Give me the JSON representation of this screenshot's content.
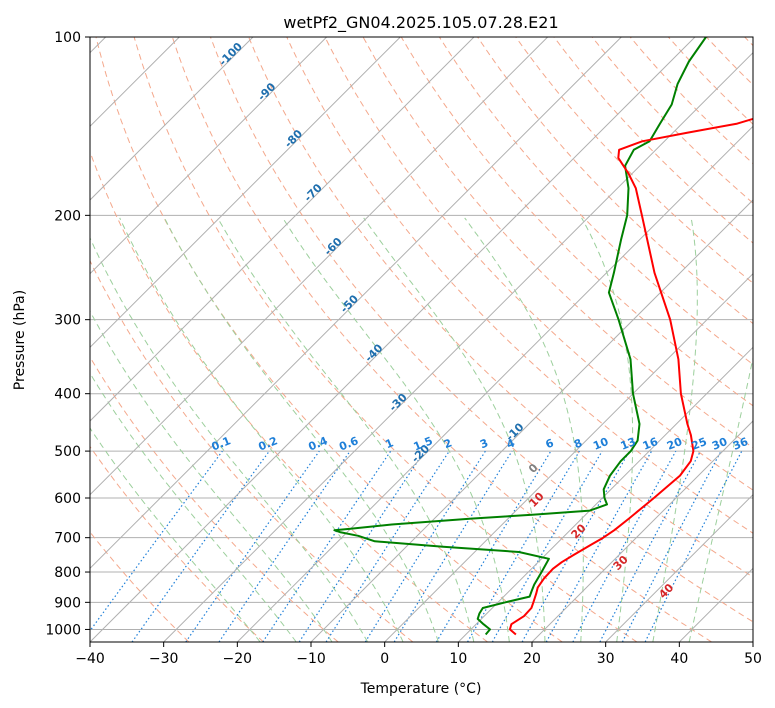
{
  "chart_data": {
    "type": "line",
    "title": "wetPf2_GN04.2025.105.07.28.E21",
    "xlabel": "Temperature (°C)",
    "ylabel": "Pressure (hPa)",
    "xlim": [
      -40,
      50
    ],
    "ylim": [
      1050,
      100
    ],
    "y_scale": "log",
    "grid": true,
    "x_ticks": [
      "−40",
      "−30",
      "−20",
      "−10",
      "0",
      "10",
      "20",
      "30",
      "40",
      "50"
    ],
    "x_tick_values": [
      -40,
      -30,
      -20,
      -10,
      0,
      10,
      20,
      30,
      40,
      50
    ],
    "y_ticks": [
      "100",
      "200",
      "300",
      "400",
      "500",
      "600",
      "700",
      "800",
      "900",
      "1000"
    ],
    "y_tick_values": [
      100,
      200,
      300,
      400,
      500,
      600,
      700,
      800,
      900,
      1000
    ],
    "skew_degrees": 45,
    "series": [
      {
        "role": "temperature",
        "color": "#ff0000",
        "points": [
          [
            1020,
            16.8
          ],
          [
            1000,
            15.3
          ],
          [
            980,
            14.8
          ],
          [
            950,
            15.4
          ],
          [
            920,
            15.3
          ],
          [
            900,
            14.8
          ],
          [
            870,
            14.0
          ],
          [
            850,
            13.4
          ],
          [
            820,
            13.0
          ],
          [
            790,
            12.9
          ],
          [
            770,
            13.2
          ],
          [
            750,
            13.8
          ],
          [
            720,
            14.8
          ],
          [
            700,
            15.5
          ],
          [
            680,
            16.0
          ],
          [
            650,
            16.4
          ],
          [
            600,
            17.0
          ],
          [
            550,
            17.5
          ],
          [
            520,
            17.0
          ],
          [
            500,
            16.0
          ],
          [
            470,
            13.5
          ],
          [
            450,
            11.5
          ],
          [
            400,
            6.5
          ],
          [
            350,
            1.5
          ],
          [
            300,
            -5.0
          ],
          [
            250,
            -13.5
          ],
          [
            200,
            -23.0
          ],
          [
            180,
            -27.5
          ],
          [
            170,
            -30.5
          ],
          [
            160,
            -34.0
          ],
          [
            155,
            -35.0
          ],
          [
            150,
            -33.0
          ],
          [
            145,
            -28.0
          ],
          [
            140,
            -22.5
          ],
          [
            130,
            -16.5
          ],
          [
            120,
            -12.0
          ],
          [
            110,
            -8.0
          ],
          [
            100,
            -4.5
          ]
        ]
      },
      {
        "role": "dewpoint",
        "color": "#008000",
        "points": [
          [
            1020,
            12.7
          ],
          [
            1000,
            12.6
          ],
          [
            980,
            11.0
          ],
          [
            960,
            9.5
          ],
          [
            940,
            9.0
          ],
          [
            920,
            8.7
          ],
          [
            900,
            11.0
          ],
          [
            880,
            13.5
          ],
          [
            860,
            13.0
          ],
          [
            840,
            12.5
          ],
          [
            800,
            11.8
          ],
          [
            760,
            11.0
          ],
          [
            740,
            6.0
          ],
          [
            725,
            -5.0
          ],
          [
            710,
            -15.0
          ],
          [
            695,
            -18.0
          ],
          [
            685,
            -21.0
          ],
          [
            680,
            -22.0
          ],
          [
            676,
            -20.0
          ],
          [
            665,
            -15.0
          ],
          [
            650,
            -5.0
          ],
          [
            640,
            3.0
          ],
          [
            630,
            10.0
          ],
          [
            615,
            11.5
          ],
          [
            600,
            10.3
          ],
          [
            580,
            9.0
          ],
          [
            550,
            8.0
          ],
          [
            520,
            7.5
          ],
          [
            500,
            7.5
          ],
          [
            480,
            7.0
          ],
          [
            450,
            5.0
          ],
          [
            400,
            0.0
          ],
          [
            350,
            -5.0
          ],
          [
            300,
            -12.0
          ],
          [
            270,
            -17.0
          ],
          [
            250,
            -19.0
          ],
          [
            220,
            -22.5
          ],
          [
            200,
            -25.0
          ],
          [
            180,
            -28.5
          ],
          [
            165,
            -32.0
          ],
          [
            155,
            -33.0
          ],
          [
            150,
            -32.0
          ],
          [
            140,
            -33.0
          ],
          [
            130,
            -34.0
          ],
          [
            120,
            -36.0
          ],
          [
            110,
            -37.5
          ],
          [
            100,
            -38.5
          ]
        ]
      }
    ],
    "dry_adiabat_labels": [
      "-100",
      "-90",
      "-80",
      "-70",
      "-60",
      "-50",
      "-40",
      "-30",
      "-20",
      "-10",
      "0",
      "10",
      "20",
      "30",
      "40"
    ],
    "mixing_ratio_labels": [
      "0.1",
      "0.2",
      "0.4",
      "0.6",
      "1",
      "1.5",
      "2",
      "3",
      "4",
      "6",
      "8",
      "10",
      "13",
      "16",
      "20",
      "25",
      "30",
      "36"
    ],
    "colors": {
      "isotherm": "#b0b0b0",
      "isobar": "#b0b0b0",
      "dry_adiabat": "#f4a88c",
      "moist_adiabat": "#9ccf9c",
      "mixing_ratio": "#1e7fd8",
      "theta_label": "#1f6fae",
      "warm_label": "#d62728",
      "zero_label": "#808080"
    }
  }
}
